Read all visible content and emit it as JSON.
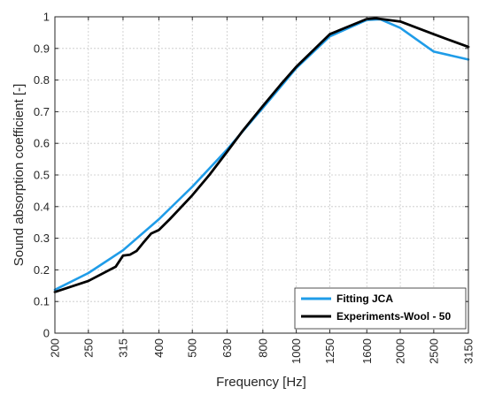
{
  "chart_data": {
    "type": "line",
    "xlabel": "Frequency [Hz]",
    "ylabel": "Sound absorption coefficient [-]",
    "x_scale": "log",
    "xlim": [
      200,
      3150
    ],
    "ylim": [
      0,
      1
    ],
    "x_ticks": [
      "200",
      "250",
      "315",
      "400",
      "500",
      "630",
      "800",
      "1000",
      "1250",
      "1600",
      "2000",
      "2500",
      "3150"
    ],
    "y_ticks": [
      "0",
      "0.1",
      "0.2",
      "0.3",
      "0.4",
      "0.5",
      "0.6",
      "0.7",
      "0.8",
      "0.9",
      "1"
    ],
    "grid": true,
    "legend_position": "bottom-right",
    "series": [
      {
        "name": "Fitting JCA",
        "color": "#1f9ce8",
        "points": [
          [
            200,
            0.137
          ],
          [
            250,
            0.19
          ],
          [
            315,
            0.262
          ],
          [
            400,
            0.36
          ],
          [
            500,
            0.463
          ],
          [
            630,
            0.58
          ],
          [
            800,
            0.712
          ],
          [
            1000,
            0.838
          ],
          [
            1250,
            0.938
          ],
          [
            1600,
            0.99
          ],
          [
            1750,
            0.992
          ],
          [
            2000,
            0.965
          ],
          [
            2500,
            0.89
          ],
          [
            3150,
            0.865
          ]
        ]
      },
      {
        "name": "Experiments-Wool - 50",
        "color": "#000000",
        "points": [
          [
            200,
            0.13
          ],
          [
            250,
            0.165
          ],
          [
            300,
            0.21
          ],
          [
            315,
            0.245
          ],
          [
            330,
            0.248
          ],
          [
            345,
            0.26
          ],
          [
            360,
            0.285
          ],
          [
            380,
            0.315
          ],
          [
            400,
            0.326
          ],
          [
            430,
            0.36
          ],
          [
            500,
            0.436
          ],
          [
            560,
            0.5
          ],
          [
            630,
            0.573
          ],
          [
            700,
            0.64
          ],
          [
            800,
            0.718
          ],
          [
            900,
            0.785
          ],
          [
            1000,
            0.842
          ],
          [
            1250,
            0.945
          ],
          [
            1600,
            0.993
          ],
          [
            1700,
            0.995
          ],
          [
            2000,
            0.985
          ],
          [
            2500,
            0.945
          ],
          [
            2800,
            0.925
          ],
          [
            3150,
            0.905
          ]
        ]
      }
    ]
  }
}
